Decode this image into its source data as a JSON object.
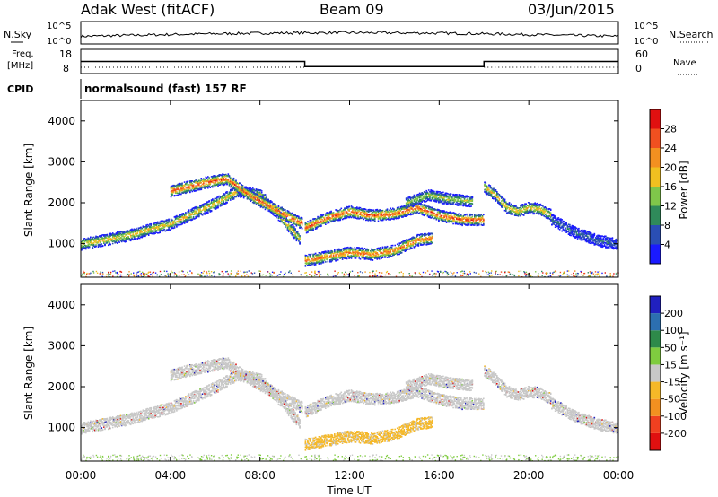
{
  "header": {
    "station": "Adak West (fitACF)",
    "beam": "Beam 09",
    "date": "03/Jun/2015"
  },
  "nsky_panel": {
    "left_label": "N.Sky",
    "right_label": "N.Search",
    "left_ticks": [
      "10^5",
      "10^0"
    ],
    "right_ticks": [
      "10^5",
      "10^0"
    ]
  },
  "freq_panel": {
    "left_label_1": "Freq.",
    "left_label_2": "[MHz]",
    "right_label": "Nave",
    "left_ticks": [
      "18",
      "8"
    ],
    "right_ticks": [
      "60",
      "0"
    ]
  },
  "cpid": {
    "label": "CPID",
    "program": "normalsound (fast) 157 RF"
  },
  "x_axis": {
    "title": "Time UT",
    "ticks": [
      "00:00",
      "04:00",
      "08:00",
      "12:00",
      "16:00",
      "20:00",
      "00:00"
    ]
  },
  "power_panel": {
    "ylabel": "Slant Range [km]",
    "yticks": [
      "1000",
      "2000",
      "3000",
      "4000"
    ],
    "colorbar_title": "Power [dB]",
    "colorbar_ticks": [
      "4",
      "8",
      "12",
      "16",
      "20",
      "24",
      "28"
    ],
    "colorbar_colors": [
      "#1a1aff",
      "#2a4eb4",
      "#2f8a5a",
      "#7fc64a",
      "#f0c020",
      "#f39020",
      "#f05020",
      "#e01010"
    ]
  },
  "velocity_panel": {
    "ylabel": "Slant Range [km]",
    "yticks": [
      "1000",
      "2000",
      "3000",
      "4000"
    ],
    "colorbar_title": "Velocity [m s⁻¹]",
    "colorbar_ticks": [
      "200",
      "100",
      "50",
      "15",
      "-15",
      "-50",
      "-100",
      "-200"
    ],
    "colorbar_colors": [
      "#2020c0",
      "#2c6fb0",
      "#2e8a4a",
      "#7fcc3f",
      "#c8c8c8",
      "#f5b828",
      "#f39020",
      "#f04020",
      "#e01010"
    ]
  },
  "chart_data": {
    "type": "heatmap",
    "x_range_hours": [
      0,
      24
    ],
    "y_range_km": [
      180,
      4500
    ],
    "freq_mhz": {
      "segments": [
        {
          "start": 0,
          "end": 10,
          "value": 13
        },
        {
          "start": 10,
          "end": 18,
          "value": 10
        },
        {
          "start": 18,
          "end": 24,
          "value": 13
        }
      ]
    },
    "power_bands": [
      {
        "t": [
          0.0,
          2.0,
          4.0,
          6.0,
          7.0,
          8.0,
          9.0,
          9.8
        ],
        "range": [
          1000,
          1200,
          1500,
          2000,
          2300,
          2200,
          1600,
          1100
        ],
        "peak_db": 20
      },
      {
        "t": [
          4.0,
          5.5,
          6.5,
          7.5,
          8.5,
          9.5,
          9.9
        ],
        "range": [
          2300,
          2500,
          2600,
          2200,
          1900,
          1600,
          1500
        ],
        "peak_db": 28
      },
      {
        "t": [
          10.0,
          11.0,
          12.0,
          13.0,
          14.0,
          15.0,
          16.0,
          17.0,
          18.0
        ],
        "range": [
          1400,
          1650,
          1800,
          1700,
          1750,
          1900,
          1700,
          1600,
          1600
        ],
        "peak_db": 28
      },
      {
        "t": [
          10.0,
          11.0,
          12.0,
          13.0,
          14.0,
          15.0,
          15.7
        ],
        "range": [
          600,
          700,
          800,
          750,
          850,
          1100,
          1150
        ],
        "peak_db": 26
      },
      {
        "t": [
          14.5,
          15.5,
          16.5,
          17.5
        ],
        "range": [
          2000,
          2200,
          2100,
          2050
        ],
        "peak_db": 16
      },
      {
        "t": [
          18.0,
          18.5,
          19.0,
          19.5,
          20.0,
          20.5,
          21.0
        ],
        "range": [
          2400,
          2200,
          1900,
          1800,
          1900,
          1850,
          1700
        ],
        "peak_db": 20
      },
      {
        "t": [
          21.0,
          22.0,
          23.0,
          24.0
        ],
        "range": [
          1600,
          1300,
          1100,
          1000
        ],
        "peak_db": 8
      }
    ]
  }
}
